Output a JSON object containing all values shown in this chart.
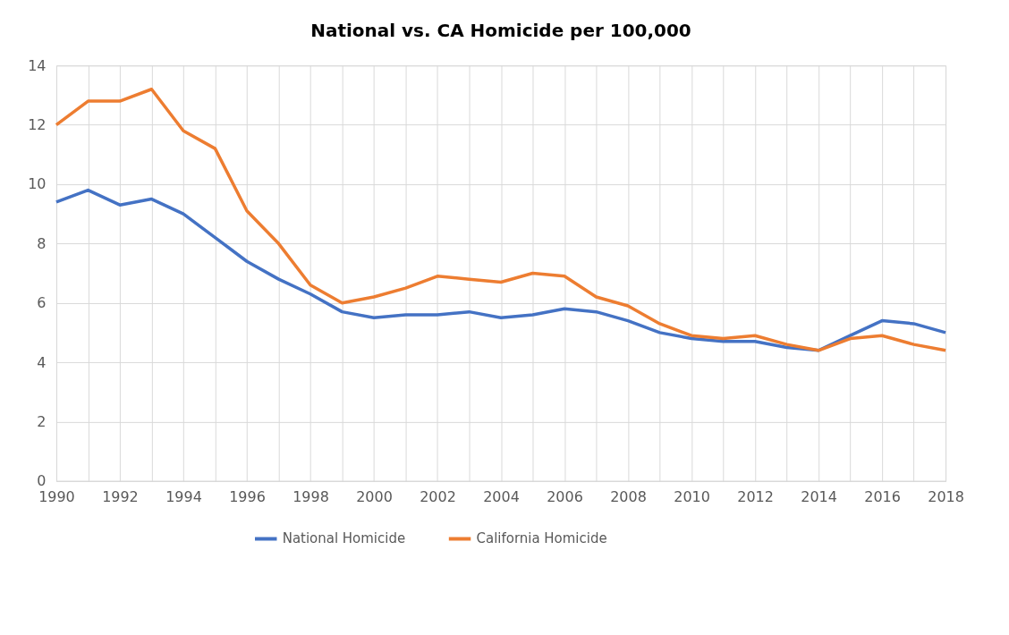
{
  "chart_data": {
    "type": "line",
    "title": "National vs. CA Homicide per 100,000",
    "x": [
      1990,
      1991,
      1992,
      1993,
      1994,
      1995,
      1996,
      1997,
      1998,
      1999,
      2000,
      2001,
      2002,
      2003,
      2004,
      2005,
      2006,
      2007,
      2008,
      2009,
      2010,
      2011,
      2012,
      2013,
      2014,
      2015,
      2016,
      2017,
      2018
    ],
    "series": [
      {
        "name": "National Homicide",
        "color": "#4472c4",
        "values": [
          9.4,
          9.8,
          9.3,
          9.5,
          9.0,
          8.2,
          7.4,
          6.8,
          6.3,
          5.7,
          5.5,
          5.6,
          5.6,
          5.7,
          5.5,
          5.6,
          5.8,
          5.7,
          5.4,
          5.0,
          4.8,
          4.7,
          4.7,
          4.5,
          4.4,
          4.9,
          5.4,
          5.3,
          5.0
        ]
      },
      {
        "name": "California Homicide",
        "color": "#ed7d31",
        "values": [
          12.0,
          12.8,
          12.8,
          13.2,
          11.8,
          11.2,
          9.1,
          8.0,
          6.6,
          6.0,
          6.2,
          6.5,
          6.9,
          6.8,
          6.7,
          7.0,
          6.9,
          6.2,
          5.9,
          5.3,
          4.9,
          4.8,
          4.9,
          4.6,
          4.4,
          4.8,
          4.9,
          4.6,
          4.4
        ]
      }
    ],
    "xlim": [
      1990,
      2018
    ],
    "xticks": [
      1990,
      {
        "value": 1991,
        "label": null
      },
      1992,
      {
        "value": 1993,
        "label": null
      },
      1994,
      {
        "value": 1995,
        "label": null
      },
      1996,
      {
        "value": 1997,
        "label": null
      },
      1998,
      {
        "value": 1999,
        "label": null
      },
      2000,
      {
        "value": 2001,
        "label": null
      },
      2002,
      {
        "value": 2003,
        "label": null
      },
      2004,
      {
        "value": 2005,
        "label": null
      },
      2006,
      {
        "value": 2007,
        "label": null
      },
      2008,
      {
        "value": 2009,
        "label": null
      },
      2010,
      {
        "value": 2011,
        "label": null
      },
      2012,
      {
        "value": 2013,
        "label": null
      },
      2014,
      {
        "value": 2015,
        "label": null
      },
      2016,
      {
        "value": 2017,
        "label": null
      },
      2018
    ],
    "ylim": [
      0,
      14
    ],
    "yticks": [
      0,
      2,
      4,
      6,
      8,
      10,
      12,
      14
    ],
    "grid": true,
    "legend": "bottom",
    "marker": "none",
    "line_style": "solid"
  }
}
